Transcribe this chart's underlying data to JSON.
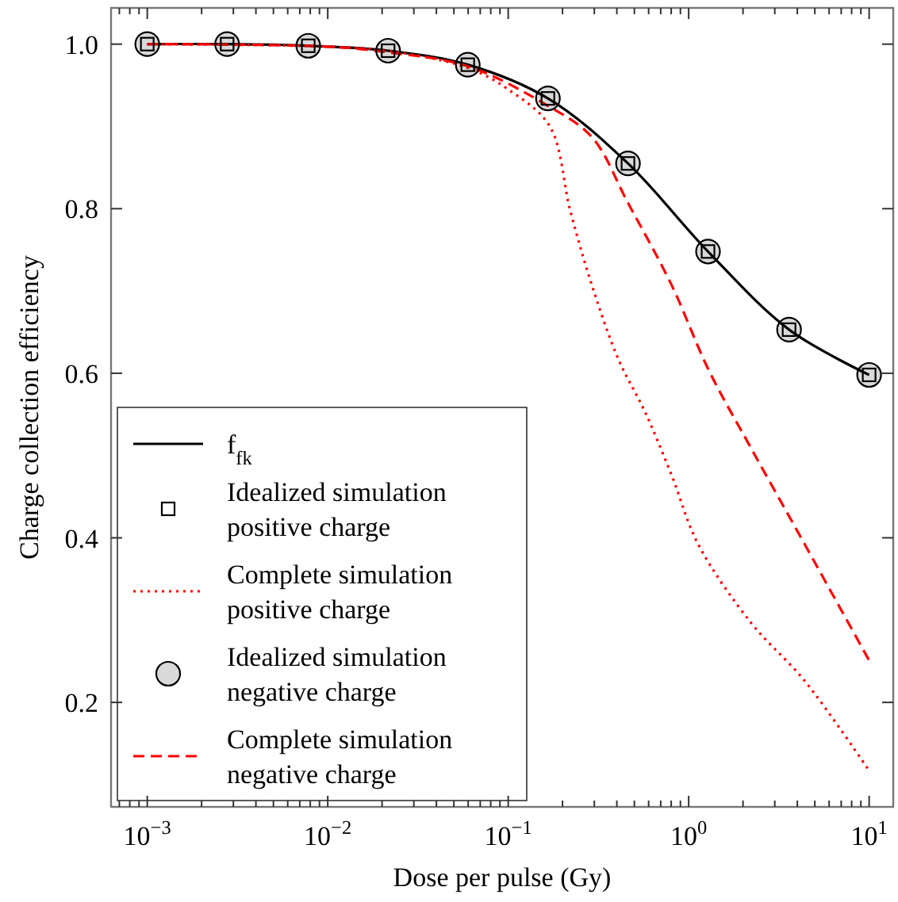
{
  "chart_data": {
    "type": "line",
    "xlabel": "Dose per pulse (Gy)",
    "ylabel": "Charge collection efficiency",
    "log": "x",
    "grid": false,
    "legend": "bottom left",
    "xlim": [
      0.00063,
      13.6
    ],
    "ylim": [
      0.073,
      1.044
    ],
    "xticks": [
      {
        "value": 0.0007,
        "label": null
      },
      {
        "value": 0.0008,
        "label": null
      },
      {
        "value": 0.0009,
        "label": null
      },
      {
        "value": 0.001,
        "label": "10$^{−3}$"
      },
      {
        "value": 0.002,
        "label": null
      },
      {
        "value": 0.003,
        "label": null
      },
      {
        "value": 0.004,
        "label": null
      },
      {
        "value": 0.005,
        "label": null
      },
      {
        "value": 0.006,
        "label": null
      },
      {
        "value": 0.007,
        "label": null
      },
      {
        "value": 0.008,
        "label": null
      },
      {
        "value": 0.009,
        "label": null
      },
      {
        "value": 0.01,
        "label": "10$^{−2}$"
      },
      {
        "value": 0.02,
        "label": null
      },
      {
        "value": 0.03,
        "label": null
      },
      {
        "value": 0.04,
        "label": null
      },
      {
        "value": 0.05,
        "label": null
      },
      {
        "value": 0.06,
        "label": null
      },
      {
        "value": 0.07,
        "label": null
      },
      {
        "value": 0.08,
        "label": null
      },
      {
        "value": 0.09,
        "label": null
      },
      {
        "value": 0.1,
        "label": "10$^{−1}$"
      },
      {
        "value": 0.2,
        "label": null
      },
      {
        "value": 0.3,
        "label": null
      },
      {
        "value": 0.4,
        "label": null
      },
      {
        "value": 0.5,
        "label": null
      },
      {
        "value": 0.6,
        "label": null
      },
      {
        "value": 0.7,
        "label": null
      },
      {
        "value": 0.8,
        "label": null
      },
      {
        "value": 0.9,
        "label": null
      },
      {
        "value": 1,
        "label": "10$^{0}$"
      },
      {
        "value": 2,
        "label": null
      },
      {
        "value": 3,
        "label": null
      },
      {
        "value": 4,
        "label": null
      },
      {
        "value": 5,
        "label": null
      },
      {
        "value": 6,
        "label": null
      },
      {
        "value": 7,
        "label": null
      },
      {
        "value": 8,
        "label": null
      },
      {
        "value": 9,
        "label": null
      },
      {
        "value": 10,
        "label": "10$^{1}$"
      }
    ],
    "yticks": [
      {
        "value": 0.2,
        "label": "0.2"
      },
      {
        "value": 0.4,
        "label": "0.4"
      },
      {
        "value": 0.6,
        "label": "0.6"
      },
      {
        "value": 0.8,
        "label": "0.8"
      },
      {
        "value": 1.0,
        "label": "1.0"
      }
    ],
    "series": [
      {
        "name": "f$_{fk}$",
        "color": "#000000",
        "line_style": "solid",
        "x": [
          0.001,
          0.00277,
          0.0078,
          0.0216,
          0.0597,
          0.166,
          0.461,
          1.28,
          3.6,
          10
        ],
        "values": [
          1.0,
          1.0,
          0.998,
          0.992,
          0.975,
          0.934,
          0.855,
          0.748,
          0.653,
          0.598
        ]
      },
      {
        "name": "Idealized simulation positive charge",
        "type": "scatter",
        "color": "#000000",
        "marker": "square",
        "x": [
          0.001,
          0.00277,
          0.0078,
          0.0216,
          0.0597,
          0.166,
          0.461,
          1.28,
          3.6,
          10
        ],
        "values": [
          1.0,
          1.0,
          0.998,
          0.992,
          0.975,
          0.934,
          0.855,
          0.748,
          0.653,
          0.598
        ]
      },
      {
        "name": "Complete simulation positive charge",
        "color": "#ff0000",
        "line_style": "dotted",
        "x": [
          0.001,
          0.01,
          0.0216,
          0.06,
          0.1,
          0.17,
          0.221,
          0.291,
          0.408,
          0.573,
          0.805,
          1.13,
          2.23,
          4.4,
          10
        ],
        "values": [
          1.0,
          0.997,
          0.992,
          0.971,
          0.945,
          0.9,
          0.797,
          0.707,
          0.617,
          0.553,
          0.476,
          0.392,
          0.296,
          0.226,
          0.117
        ]
      },
      {
        "name": "Idealized simulation negative charge",
        "type": "scatter",
        "color": "#000000",
        "marker": "circle",
        "x": [
          0.001,
          0.00277,
          0.0078,
          0.0216,
          0.0597,
          0.166,
          0.461,
          1.28,
          3.6,
          10
        ],
        "values": [
          1.0,
          1.0,
          0.998,
          0.992,
          0.975,
          0.934,
          0.855,
          0.748,
          0.653,
          0.598
        ]
      },
      {
        "name": "Complete simulation negative charge",
        "color": "#ff0000",
        "line_style": "dashed",
        "x": [
          0.001,
          0.01,
          0.0216,
          0.06,
          0.166,
          0.291,
          0.461,
          0.805,
          1.29,
          2.23,
          4.4,
          10
        ],
        "values": [
          1.0,
          0.997,
          0.99,
          0.973,
          0.925,
          0.887,
          0.807,
          0.707,
          0.604,
          0.508,
          0.392,
          0.251
        ]
      }
    ]
  }
}
